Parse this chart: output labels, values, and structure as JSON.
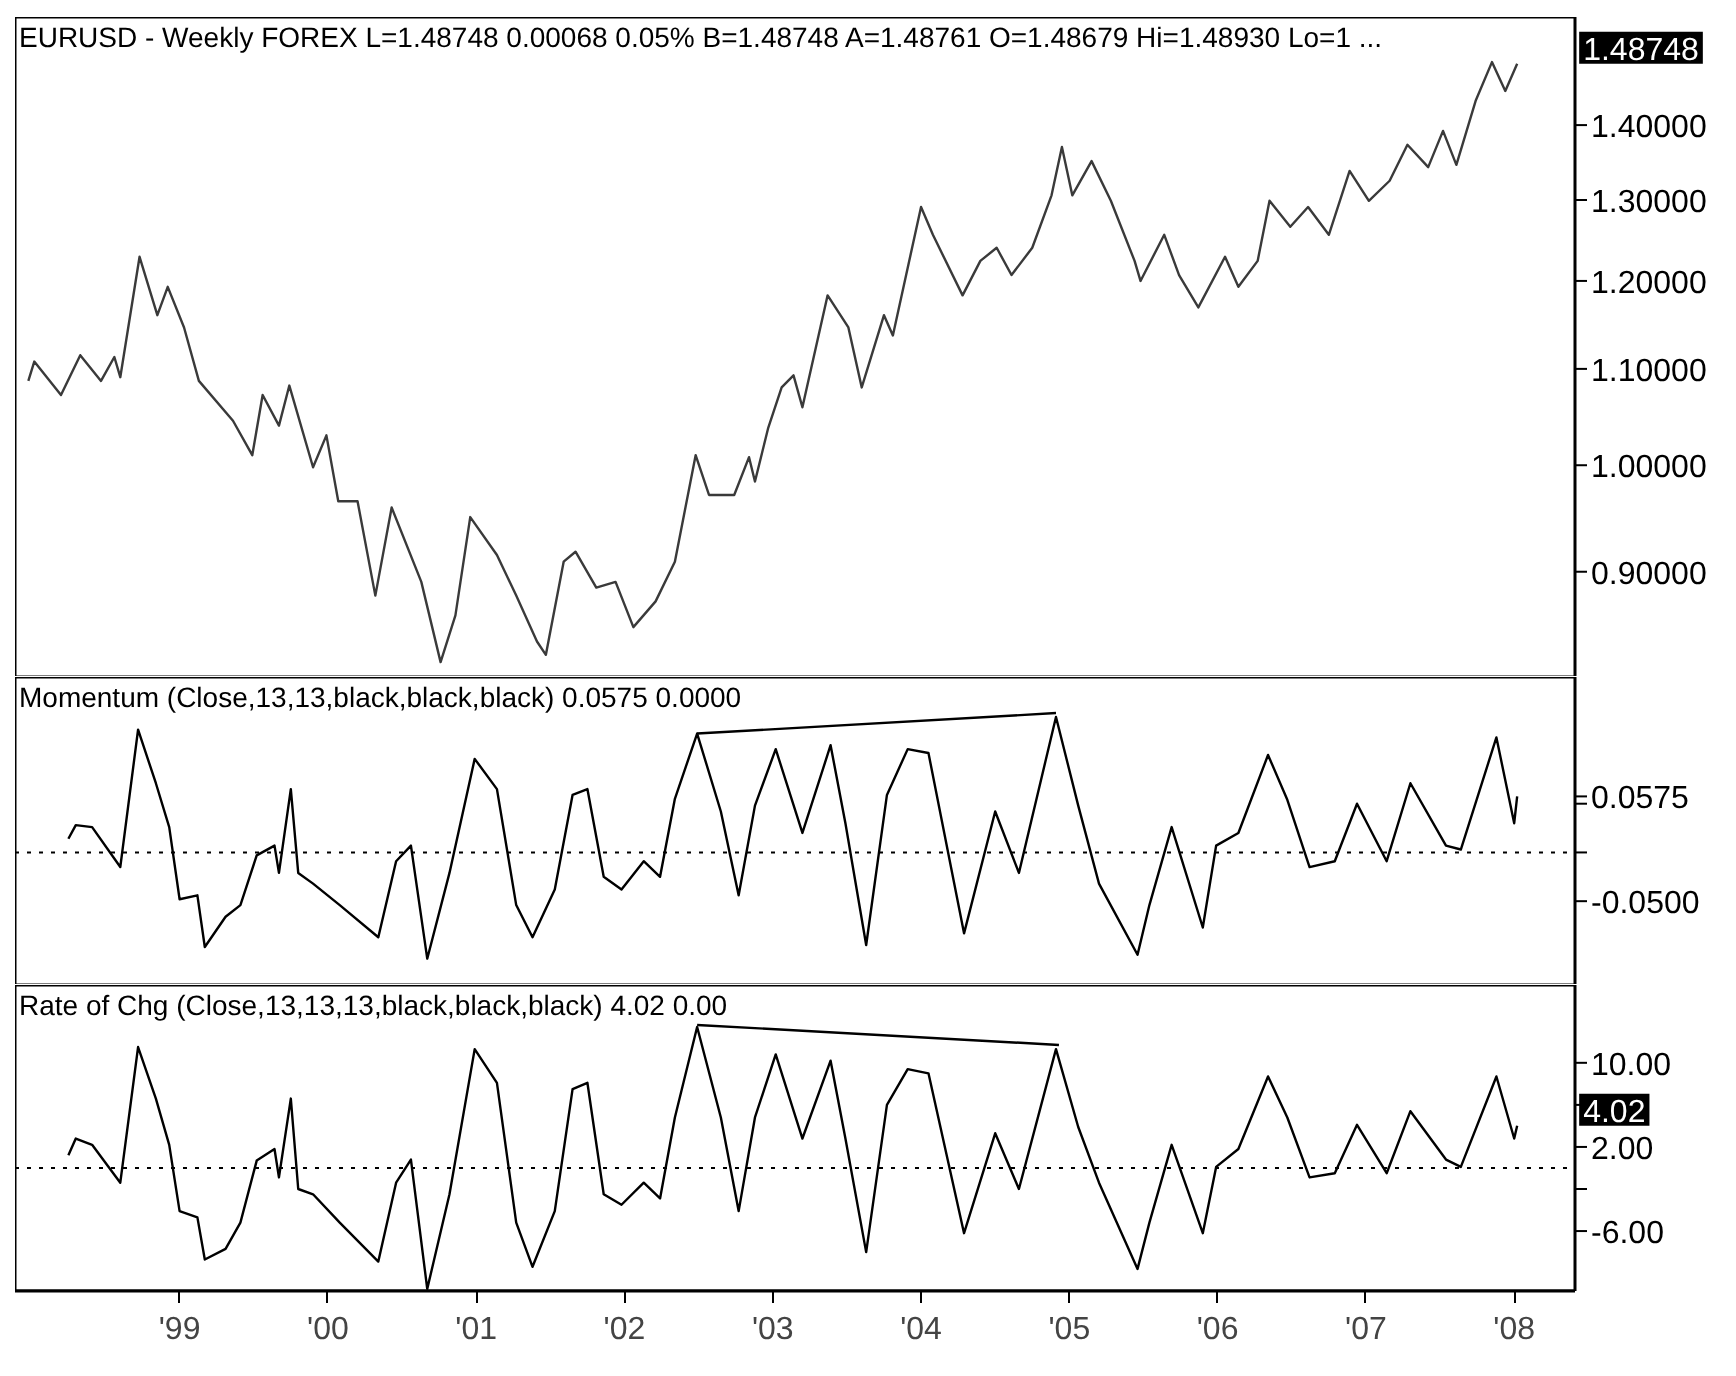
{
  "chart_data": [
    {
      "type": "line",
      "title": "EURUSD - Weekly FOREX L=1.48748 0.00068 0.05% B=1.48748 A=1.48761 O=1.48679 Hi=1.48930 Lo=1 ...",
      "x": [
        1997.98,
        1998.02,
        1998.2,
        1998.33,
        1998.47,
        1998.56,
        1998.6,
        1998.73,
        1998.85,
        1998.92,
        1999.03,
        1999.13,
        1999.36,
        1999.49,
        1999.56,
        1999.67,
        1999.74,
        1999.9,
        1999.99,
        2000.07,
        2000.2,
        2000.32,
        2000.43,
        2000.63,
        2000.76,
        2000.86,
        2000.96,
        2001.14,
        2001.27,
        2001.41,
        2001.47,
        2001.59,
        2001.67,
        2001.81,
        2001.94,
        2002.06,
        2002.21,
        2002.34,
        2002.48,
        2002.57,
        2002.74,
        2002.84,
        2002.88,
        2002.97,
        2003.06,
        2003.14,
        2003.2,
        2003.37,
        2003.51,
        2003.6,
        2003.75,
        2003.81,
        2004.0,
        2004.08,
        2004.28,
        2004.4,
        2004.51,
        2004.61,
        2004.75,
        2004.88,
        2004.95,
        2005.02,
        2005.15,
        2005.28,
        2005.44,
        2005.48,
        2005.64,
        2005.74,
        2005.87,
        2006.05,
        2006.14,
        2006.27,
        2006.35,
        2006.49,
        2006.61,
        2006.75,
        2006.89,
        2007.02,
        2007.16,
        2007.28,
        2007.42,
        2007.52,
        2007.61,
        2007.74,
        2007.85,
        2007.94,
        2008.02
      ],
      "series": [
        {
          "color": "#3a3a3a",
          "values": [
            1.087,
            1.108,
            1.072,
            1.115,
            1.087,
            1.113,
            1.091,
            1.229,
            1.16,
            1.193,
            1.146,
            1.087,
            1.045,
            1.01,
            1.072,
            1.04,
            1.082,
            0.998,
            1.03,
            0.965,
            0.965,
            0.879,
            0.959,
            0.891,
            0.823,
            0.862,
            0.95,
            0.915,
            0.879,
            0.84,
            0.829,
            0.909,
            0.918,
            0.886,
            0.891,
            0.852,
            0.874,
            0.909,
            1.01,
            0.971,
            0.971,
            1.008,
            0.984,
            1.038,
            1.08,
            1.093,
            1.059,
            1.183,
            1.146,
            1.08,
            1.16,
            1.137,
            1.291,
            1.256,
            1.183,
            1.224,
            1.24,
            1.207,
            1.24,
            1.306,
            1.37,
            1.306,
            1.351,
            1.299,
            1.224,
            1.2,
            1.256,
            1.207,
            1.169,
            1.229,
            1.193,
            1.224,
            1.299,
            1.266,
            1.291,
            1.256,
            1.338,
            1.299,
            1.325,
            1.373,
            1.343,
            1.392,
            1.346,
            1.434,
            1.49,
            1.448,
            1.48748
          ]
        }
      ],
      "xlim": [
        1997.89,
        2008.41
      ],
      "ylim": [
        0.811,
        1.558
      ],
      "log": "y",
      "yticks": [
        {
          "value": 0.9,
          "label": "0.90000"
        },
        {
          "value": 1.0,
          "label": "1.00000"
        },
        {
          "value": 1.1,
          "label": "1.10000"
        },
        {
          "value": 1.2,
          "label": "1.20000"
        },
        {
          "value": 1.3,
          "label": "1.30000"
        },
        {
          "value": 1.4,
          "label": "1.40000"
        }
      ],
      "tick_labels": "y",
      "annotations": [
        {
          "text": "1.48748",
          "x": 2008.02,
          "y": 1.48748
        }
      ]
    },
    {
      "type": "line",
      "title": "Momentum (Close,13,13,black,black,black) 0.0575 0.0000",
      "x": [
        1998.25,
        1998.3,
        1998.41,
        1998.6,
        1998.72,
        1998.84,
        1998.93,
        1999.0,
        1999.12,
        1999.17,
        1999.31,
        1999.41,
        1999.52,
        1999.64,
        1999.67,
        1999.75,
        1999.8,
        1999.9,
        2000.08,
        2000.34,
        2000.46,
        2000.56,
        2000.67,
        2000.82,
        2000.99,
        2001.14,
        2001.27,
        2001.38,
        2001.53,
        2001.65,
        2001.75,
        2001.86,
        2001.98,
        2002.13,
        2002.24,
        2002.34,
        2002.49,
        2002.65,
        2002.77,
        2002.88,
        2003.02,
        2003.2,
        2003.39,
        2003.49,
        2003.63,
        2003.77,
        2003.91,
        2004.05,
        2004.29,
        2004.5,
        2004.66,
        2004.91,
        2005.06,
        2005.2,
        2005.46,
        2005.54,
        2005.69,
        2005.9,
        2005.99,
        2006.14,
        2006.34,
        2006.47,
        2006.62,
        2006.79,
        2006.94,
        2007.14,
        2007.3,
        2007.54,
        2007.64,
        2007.88,
        2008.0,
        2008.02
      ],
      "series": [
        {
          "color": "#000000",
          "values": [
            0.014,
            0.028,
            0.026,
            -0.015,
            0.126,
            0.071,
            0.026,
            -0.048,
            -0.044,
            -0.097,
            -0.066,
            -0.054,
            -0.003,
            0.007,
            -0.021,
            0.065,
            -0.021,
            -0.032,
            -0.054,
            -0.087,
            -0.009,
            0.007,
            -0.109,
            -0.021,
            0.096,
            0.065,
            -0.054,
            -0.087,
            -0.038,
            0.059,
            0.065,
            -0.025,
            -0.038,
            -0.009,
            -0.025,
            0.055,
            0.122,
            0.042,
            -0.044,
            0.048,
            0.106,
            0.02,
            0.11,
            0.03,
            -0.095,
            0.059,
            0.106,
            0.102,
            -0.083,
            0.042,
            -0.021,
            0.139,
            0.048,
            -0.032,
            -0.105,
            -0.054,
            0.026,
            -0.077,
            0.007,
            0.02,
            0.1,
            0.054,
            -0.015,
            -0.009,
            0.05,
            -0.009,
            0.071,
            0.007,
            0.003,
            0.118,
            0.03,
            0.0575
          ]
        },
        {
          "type": "line",
          "color": "#000000",
          "x": [
            2002.49,
            2004.91
          ],
          "values": [
            0.122,
            0.143
          ]
        }
      ],
      "xlim": [
        1997.89,
        2008.41
      ],
      "ylim": [
        -0.136,
        0.18
      ],
      "yticks": [
        {
          "value": -0.05,
          "label": "-0.0500"
        },
        {
          "value": 0,
          "label": null
        },
        {
          "value": 0.05,
          "label": null
        },
        {
          "value": 0.0575,
          "label": "0.0575"
        }
      ],
      "tick_labels": "y",
      "ref_lines": [
        {
          "axis": "y",
          "value": 0,
          "label": null,
          "color": "#000000",
          "line_style": "dotted"
        }
      ]
    },
    {
      "type": "line",
      "title": "Rate of Chg (Close,13,13,13,black,black,black) 4.02 0.00",
      "x": [
        1998.25,
        1998.3,
        1998.41,
        1998.6,
        1998.72,
        1998.84,
        1998.93,
        1999.0,
        1999.12,
        1999.17,
        1999.31,
        1999.41,
        1999.52,
        1999.64,
        1999.67,
        1999.75,
        1999.8,
        1999.9,
        2000.08,
        2000.34,
        2000.46,
        2000.56,
        2000.67,
        2000.82,
        2000.99,
        2001.14,
        2001.27,
        2001.38,
        2001.53,
        2001.65,
        2001.75,
        2001.86,
        2001.98,
        2002.13,
        2002.24,
        2002.34,
        2002.49,
        2002.65,
        2002.77,
        2002.88,
        2003.02,
        2003.2,
        2003.39,
        2003.49,
        2003.63,
        2003.77,
        2003.91,
        2004.05,
        2004.29,
        2004.5,
        2004.66,
        2004.91,
        2005.06,
        2005.2,
        2005.46,
        2005.54,
        2005.69,
        2005.9,
        2005.99,
        2006.14,
        2006.34,
        2006.47,
        2006.62,
        2006.79,
        2006.94,
        2007.14,
        2007.3,
        2007.54,
        2007.64,
        2007.88,
        2008.0,
        2008.02
      ],
      "series": [
        {
          "color": "#000000",
          "values": [
            1.2,
            2.8,
            2.2,
            -1.4,
            11.5,
            6.6,
            2.2,
            -4.1,
            -4.7,
            -8.7,
            -7.7,
            -5.2,
            0.7,
            1.8,
            -0.9,
            6.6,
            -2.0,
            -2.5,
            -5.2,
            -8.9,
            -1.4,
            0.8,
            -11.5,
            -2.5,
            11.3,
            8.1,
            -5.2,
            -9.4,
            -4.1,
            7.5,
            8.1,
            -2.5,
            -3.5,
            -1.4,
            -2.9,
            4.8,
            13.4,
            4.8,
            -4.1,
            4.8,
            10.8,
            2.8,
            10.2,
            2.8,
            -8.0,
            6.0,
            9.4,
            9.0,
            -6.2,
            3.3,
            -2.0,
            11.3,
            3.9,
            -1.4,
            -9.6,
            -5.2,
            2.2,
            -6.2,
            0.1,
            1.8,
            8.7,
            4.8,
            -0.9,
            -0.5,
            4.1,
            -0.5,
            5.4,
            0.8,
            0.1,
            8.7,
            2.8,
            4.02
          ]
        },
        {
          "type": "line",
          "color": "#000000",
          "x": [
            2002.49,
            2004.93
          ],
          "values": [
            13.6,
            11.7
          ]
        }
      ],
      "xlim": [
        1997.89,
        2008.41
      ],
      "ylim": [
        -11.7,
        17.4
      ],
      "xticks": [
        {
          "value": 1999,
          "label": "'99"
        },
        {
          "value": 2000,
          "label": "'00"
        },
        {
          "value": 2001,
          "label": "'01"
        },
        {
          "value": 2002,
          "label": "'02"
        },
        {
          "value": 2003,
          "label": "'03"
        },
        {
          "value": 2004,
          "label": "'04"
        },
        {
          "value": 2005,
          "label": "'05"
        },
        {
          "value": 2006,
          "label": "'06"
        },
        {
          "value": 2007,
          "label": "'07"
        },
        {
          "value": 2008,
          "label": "'08"
        }
      ],
      "yticks": [
        {
          "value": -6,
          "label": "-6.00"
        },
        {
          "value": -2,
          "label": null
        },
        {
          "value": 2,
          "label": "2.00"
        },
        {
          "value": 6,
          "label": null
        },
        {
          "value": 10,
          "label": "10.00"
        }
      ],
      "ref_lines": [
        {
          "axis": "y",
          "value": 0,
          "label": null,
          "color": "#000000",
          "line_style": "dotted"
        }
      ],
      "annotations": [
        {
          "text": "4.02",
          "x": 2008.02,
          "y": 4.02
        }
      ]
    }
  ]
}
